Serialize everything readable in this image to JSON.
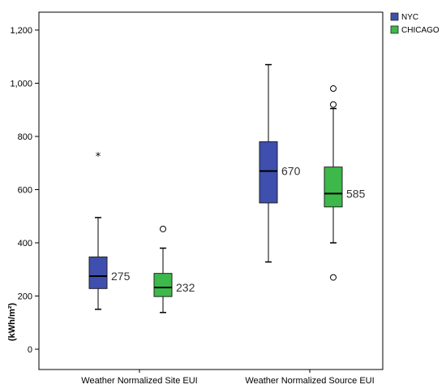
{
  "chart_data": {
    "type": "boxplot",
    "ylabel": "(kWh/m²)",
    "ylim": [
      -30,
      1260
    ],
    "yticks": [
      0,
      200,
      400,
      600,
      800,
      1000,
      1200
    ],
    "ytick_labels": [
      "0",
      "200",
      "400",
      "600",
      "800",
      "1,000",
      "1,200"
    ],
    "categories": [
      "Weather Normalized Site EUI",
      "Weather Normalized Source EUI"
    ],
    "legend_position": "top-right",
    "grid": false,
    "series": [
      {
        "name": "NYC",
        "color": "#3e4fad",
        "boxes": [
          {
            "whisker_low": 150,
            "q1": 228,
            "median": 275,
            "q3": 347,
            "whisker_high": 495,
            "median_label": "275",
            "outliers": [
              {
                "value": 730,
                "marker": "star"
              }
            ]
          },
          {
            "whisker_low": 328,
            "q1": 550,
            "median": 670,
            "q3": 780,
            "whisker_high": 1070,
            "median_label": "670",
            "outliers": []
          }
        ]
      },
      {
        "name": "CHICAGO",
        "color": "#3cb94a",
        "boxes": [
          {
            "whisker_low": 138,
            "q1": 198,
            "median": 232,
            "q3": 285,
            "whisker_high": 380,
            "median_label": "232",
            "outliers": [
              {
                "value": 452,
                "marker": "circle"
              }
            ]
          },
          {
            "whisker_low": 400,
            "q1": 535,
            "median": 585,
            "q3": 685,
            "whisker_high": 905,
            "median_label": "585",
            "outliers": [
              {
                "value": 980,
                "marker": "circle"
              },
              {
                "value": 920,
                "marker": "circle"
              },
              {
                "value": 270,
                "marker": "circle"
              }
            ]
          }
        ]
      }
    ]
  }
}
